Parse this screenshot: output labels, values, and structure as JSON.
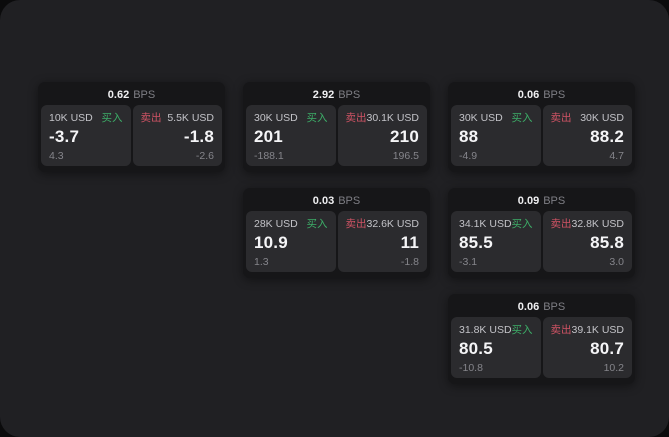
{
  "colors": {
    "buy_green": "#3dae68",
    "sell_red": "#cf5364",
    "surface_bg": "#202023",
    "card_bg": "#161618",
    "panel_bg": "#2b2b2e"
  },
  "unit_label": "BPS",
  "buy_label": "买入",
  "sell_label": "卖出",
  "cards": [
    {
      "bps": "0.62",
      "buy_amount": "10K USD",
      "buy_value": "-3.7",
      "buy_sub": "4.3",
      "sell_amount": "5.5K USD",
      "sell_value": "-1.8",
      "sell_sub": "-2.6"
    },
    {
      "bps": "2.92",
      "buy_amount": "30K USD",
      "buy_value": "201",
      "buy_sub": "-188.1",
      "sell_amount": "30.1K USD",
      "sell_value": "210",
      "sell_sub": "196.5"
    },
    {
      "bps": "0.06",
      "buy_amount": "30K USD",
      "buy_value": "88",
      "buy_sub": "-4.9",
      "sell_amount": "30K USD",
      "sell_value": "88.2",
      "sell_sub": "4.7"
    },
    {
      "bps": "0.03",
      "buy_amount": "28K USD",
      "buy_value": "10.9",
      "buy_sub": "1.3",
      "sell_amount": "32.6K USD",
      "sell_value": "11",
      "sell_sub": "-1.8"
    },
    {
      "bps": "0.09",
      "buy_amount": "34.1K USD",
      "buy_value": "85.5",
      "buy_sub": "-3.1",
      "sell_amount": "32.8K USD",
      "sell_value": "85.8",
      "sell_sub": "3.0"
    },
    {
      "bps": "0.06",
      "buy_amount": "31.8K USD",
      "buy_value": "80.5",
      "buy_sub": "-10.8",
      "sell_amount": "39.1K USD",
      "sell_value": "80.7",
      "sell_sub": "10.2"
    }
  ]
}
